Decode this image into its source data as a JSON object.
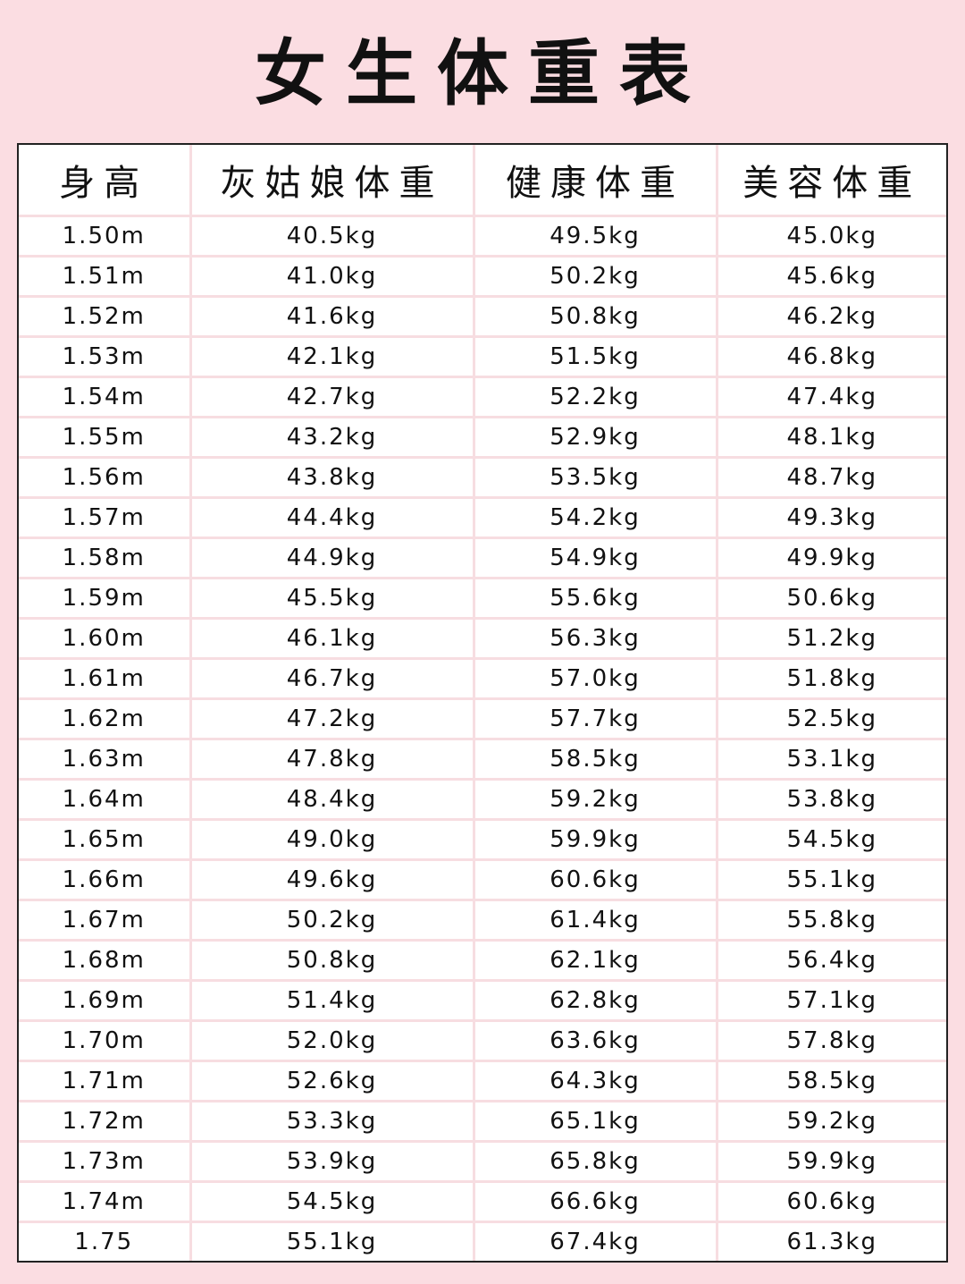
{
  "title": "女生体重表",
  "colors": {
    "background": "#fbdde2",
    "grid": "#f7dde1",
    "border": "#222222"
  },
  "table": {
    "headers": [
      "身高",
      "灰姑娘体重",
      "健康体重",
      "美容体重"
    ],
    "rows": [
      [
        "1.50m",
        "40.5kg",
        "49.5kg",
        "45.0kg"
      ],
      [
        "1.51m",
        "41.0kg",
        "50.2kg",
        "45.6kg"
      ],
      [
        "1.52m",
        "41.6kg",
        "50.8kg",
        "46.2kg"
      ],
      [
        "1.53m",
        "42.1kg",
        "51.5kg",
        "46.8kg"
      ],
      [
        "1.54m",
        "42.7kg",
        "52.2kg",
        "47.4kg"
      ],
      [
        "1.55m",
        "43.2kg",
        "52.9kg",
        "48.1kg"
      ],
      [
        "1.56m",
        "43.8kg",
        "53.5kg",
        "48.7kg"
      ],
      [
        "1.57m",
        "44.4kg",
        "54.2kg",
        "49.3kg"
      ],
      [
        "1.58m",
        "44.9kg",
        "54.9kg",
        "49.9kg"
      ],
      [
        "1.59m",
        "45.5kg",
        "55.6kg",
        "50.6kg"
      ],
      [
        "1.60m",
        "46.1kg",
        "56.3kg",
        "51.2kg"
      ],
      [
        "1.61m",
        "46.7kg",
        "57.0kg",
        "51.8kg"
      ],
      [
        "1.62m",
        "47.2kg",
        "57.7kg",
        "52.5kg"
      ],
      [
        "1.63m",
        "47.8kg",
        "58.5kg",
        "53.1kg"
      ],
      [
        "1.64m",
        "48.4kg",
        "59.2kg",
        "53.8kg"
      ],
      [
        "1.65m",
        "49.0kg",
        "59.9kg",
        "54.5kg"
      ],
      [
        "1.66m",
        "49.6kg",
        "60.6kg",
        "55.1kg"
      ],
      [
        "1.67m",
        "50.2kg",
        "61.4kg",
        "55.8kg"
      ],
      [
        "1.68m",
        "50.8kg",
        "62.1kg",
        "56.4kg"
      ],
      [
        "1.69m",
        "51.4kg",
        "62.8kg",
        "57.1kg"
      ],
      [
        "1.70m",
        "52.0kg",
        "63.6kg",
        "57.8kg"
      ],
      [
        "1.71m",
        "52.6kg",
        "64.3kg",
        "58.5kg"
      ],
      [
        "1.72m",
        "53.3kg",
        "65.1kg",
        "59.2kg"
      ],
      [
        "1.73m",
        "53.9kg",
        "65.8kg",
        "59.9kg"
      ],
      [
        "1.74m",
        "54.5kg",
        "66.6kg",
        "60.6kg"
      ],
      [
        "1.75",
        "55.1kg",
        "67.4kg",
        "61.3kg"
      ]
    ]
  }
}
